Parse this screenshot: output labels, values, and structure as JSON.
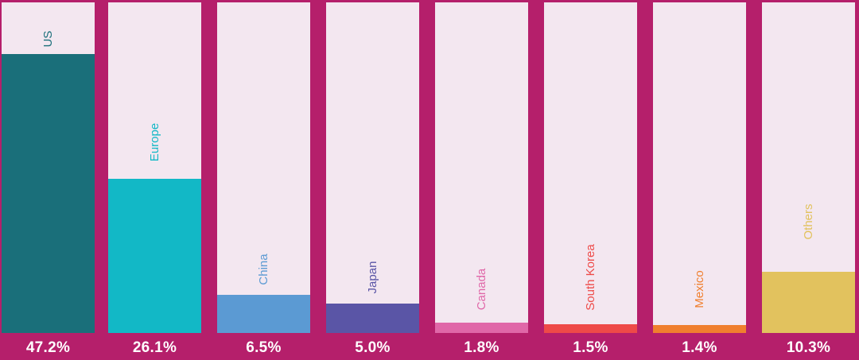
{
  "chart_data": {
    "type": "bar",
    "orientation": "vertical",
    "categories": [
      "US",
      "Europe",
      "China",
      "Japan",
      "Canada",
      "South Korea",
      "Mexico",
      "Others"
    ],
    "values": [
      47.2,
      26.1,
      6.5,
      5.0,
      1.8,
      1.5,
      1.4,
      10.3
    ],
    "value_labels": [
      "47.2%",
      "26.1%",
      "6.5%",
      "5.0%",
      "1.8%",
      "1.5%",
      "1.4%",
      "10.3%"
    ],
    "unit": "%",
    "ylim": [
      0,
      56
    ],
    "grid": false,
    "legend": "none",
    "colors": [
      "#1A6F7A",
      "#12B8C6",
      "#5B9AD3",
      "#5A55A6",
      "#E067A8",
      "#EE4A48",
      "#F07F2E",
      "#E2C25E"
    ],
    "label_colors": [
      "#1A6F7A",
      "#12B8C6",
      "#5B9AD3",
      "#5A55A6",
      "#E067A8",
      "#EE4A48",
      "#F07F2E",
      "#E2C25E"
    ],
    "background_color": "#B51F6B",
    "track_color": "#F3E7F0",
    "value_label_color": "#FFFFFF"
  }
}
